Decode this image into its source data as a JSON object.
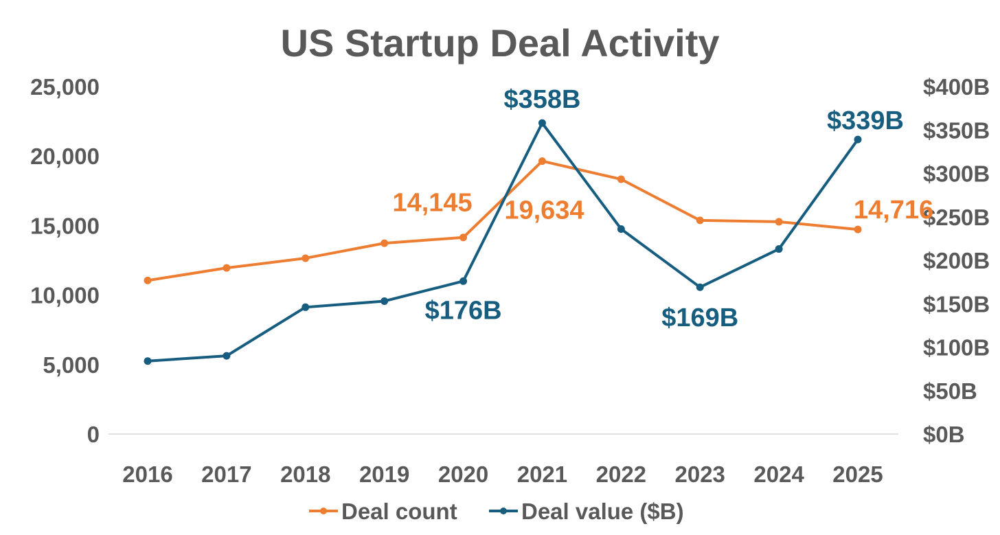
{
  "chart_data": {
    "type": "line",
    "title": "US Startup Deal Activity",
    "categories": [
      "2016",
      "2017",
      "2018",
      "2019",
      "2020",
      "2021",
      "2022",
      "2023",
      "2024",
      "2025"
    ],
    "series": [
      {
        "name": "Deal count",
        "axis": "left",
        "color": "#ED7D31",
        "values": [
          11050,
          11950,
          12650,
          13730,
          14145,
          19634,
          18330,
          15370,
          15270,
          14716
        ],
        "data_labels": [
          null,
          null,
          null,
          null,
          "14,145",
          "19,634",
          null,
          null,
          null,
          "14,716"
        ]
      },
      {
        "name": "Deal value ($B)",
        "axis": "right",
        "color": "#175D80",
        "values": [
          84,
          90,
          146,
          153,
          176,
          358,
          236,
          169,
          213,
          339
        ],
        "data_labels": [
          null,
          null,
          null,
          null,
          "$176B",
          "$358B",
          null,
          "$169B",
          null,
          "$339B"
        ]
      }
    ],
    "left_axis": {
      "ylim": [
        0,
        25000
      ],
      "ticks": [
        "0",
        "5,000",
        "10,000",
        "15,000",
        "20,000",
        "25,000"
      ]
    },
    "right_axis": {
      "ylim": [
        0,
        400
      ],
      "ticks": [
        "$0B",
        "$50B",
        "$100B",
        "$150B",
        "$200B",
        "$250B",
        "$300B",
        "$350B",
        "$400B"
      ]
    },
    "grid": false,
    "legend": "bottom"
  }
}
